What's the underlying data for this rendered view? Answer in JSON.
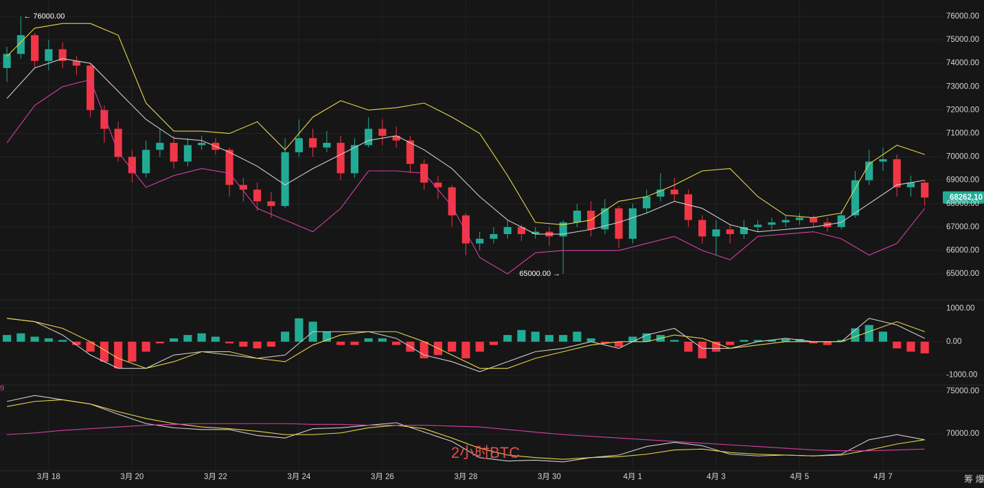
{
  "chart_data": [
    {
      "type": "candlestick",
      "xlim": [
        -0.5,
        67.3
      ],
      "ylim": [
        63944,
        76704
      ],
      "yticks": [
        {
          "value": 65000,
          "label": "65000.00"
        },
        {
          "value": 66000,
          "label": "66000.00"
        },
        {
          "value": 67000,
          "label": "67000.00"
        },
        {
          "value": 68000,
          "label": "68000.00"
        },
        {
          "value": 69000,
          "label": "69000.00"
        },
        {
          "value": 70000,
          "label": "70000.00"
        },
        {
          "value": 71000,
          "label": "71000.00"
        },
        {
          "value": 72000,
          "label": "72000.00"
        },
        {
          "value": 73000,
          "label": "73000.00"
        },
        {
          "value": 74000,
          "label": "74000.00"
        },
        {
          "value": 75000,
          "label": "75000.00"
        },
        {
          "value": 76000,
          "label": "76000.00"
        }
      ],
      "candles": {
        "up_color": "#22ab94",
        "down_color": "#f23645",
        "open": [
          73800,
          74400,
          75200,
          74100,
          74600,
          74100,
          73900,
          72000,
          71200,
          70000,
          69300,
          70300,
          70600,
          69800,
          70500,
          70600,
          70300,
          68800,
          68600,
          68100,
          67900,
          70200,
          70800,
          70400,
          70600,
          69300,
          70500,
          71200,
          70900,
          70700,
          69700,
          68900,
          68700,
          67500,
          66300,
          66500,
          66700,
          67000,
          66700,
          66800,
          66600,
          67200,
          67700,
          66900,
          67800,
          66500,
          67800,
          68300,
          68600,
          68400,
          67300,
          66600,
          66900,
          66700,
          67000,
          67100,
          67200,
          67300,
          67400,
          67200,
          67000,
          67500,
          69000,
          69800,
          69900,
          68700,
          68900
        ],
        "high": [
          74700,
          76000,
          75300,
          75000,
          74900,
          74300,
          74000,
          72200,
          71500,
          70300,
          70700,
          71200,
          70900,
          70800,
          70900,
          70800,
          70400,
          69100,
          68900,
          68500,
          70800,
          71600,
          71200,
          71100,
          70900,
          70800,
          71700,
          71600,
          71300,
          70900,
          69900,
          69200,
          68800,
          67600,
          66800,
          67000,
          67300,
          67100,
          67000,
          67000,
          67300,
          68000,
          68100,
          68200,
          67900,
          68000,
          68600,
          69300,
          69100,
          68600,
          67500,
          67300,
          67100,
          67300,
          67300,
          67400,
          67500,
          67600,
          67500,
          67400,
          67700,
          69400,
          70300,
          70400,
          70100,
          69200,
          69000
        ],
        "low": [
          73200,
          74200,
          73800,
          73700,
          73800,
          73500,
          71700,
          70600,
          69800,
          68900,
          69100,
          70000,
          69500,
          69600,
          70300,
          70100,
          68300,
          68100,
          67700,
          67400,
          67800,
          70000,
          70000,
          70200,
          69000,
          69100,
          70400,
          70500,
          70400,
          69300,
          68600,
          68200,
          67000,
          65800,
          66000,
          66300,
          66500,
          66400,
          66500,
          66200,
          65000,
          67000,
          66600,
          66700,
          66100,
          66300,
          67600,
          68100,
          68100,
          67000,
          66300,
          65800,
          66300,
          66500,
          66800,
          66900,
          67000,
          67100,
          67000,
          66800,
          66900,
          67400,
          68800,
          69400,
          68300,
          68300,
          67900
        ],
        "close": [
          74400,
          75200,
          74100,
          74600,
          74100,
          73900,
          72000,
          71200,
          70000,
          69300,
          70300,
          70600,
          69800,
          70500,
          70600,
          70300,
          68800,
          68600,
          68100,
          67900,
          70200,
          70800,
          70400,
          70600,
          69300,
          70500,
          71200,
          70900,
          70700,
          69700,
          68900,
          68700,
          67500,
          66300,
          66500,
          66700,
          67000,
          66700,
          66800,
          66600,
          67200,
          67700,
          66900,
          67800,
          66500,
          67800,
          68300,
          68600,
          68400,
          67300,
          66600,
          66900,
          66700,
          67000,
          67100,
          67200,
          67300,
          67400,
          67200,
          67000,
          67500,
          69000,
          69800,
          69900,
          68700,
          68900,
          68262.1
        ]
      },
      "series": [
        {
          "color": "#e8d84a",
          "x": [
            0,
            2,
            4,
            6,
            8,
            10,
            12,
            14,
            16,
            18,
            20,
            22,
            24,
            26,
            28,
            30,
            32,
            34,
            36,
            38,
            40,
            42,
            44,
            46,
            48,
            50,
            52,
            54,
            56,
            58,
            60,
            62,
            64,
            66
          ],
          "values": [
            74300,
            75500,
            75700,
            75700,
            75200,
            72300,
            71100,
            71100,
            71000,
            71500,
            70300,
            71700,
            72400,
            72000,
            72100,
            72300,
            71700,
            71000,
            69200,
            67200,
            67100,
            67300,
            68100,
            68300,
            68800,
            69400,
            69500,
            68300,
            67500,
            67400,
            67600,
            69700,
            70500,
            70100
          ]
        },
        {
          "color": "#d0d0d0",
          "x": [
            0,
            2,
            4,
            6,
            8,
            10,
            12,
            14,
            16,
            18,
            20,
            22,
            24,
            26,
            28,
            30,
            32,
            34,
            36,
            38,
            40,
            42,
            44,
            46,
            48,
            50,
            52,
            54,
            56,
            58,
            60,
            62,
            64,
            66
          ],
          "values": [
            72500,
            73800,
            74200,
            74000,
            72800,
            71600,
            70800,
            70700,
            70200,
            69600,
            68800,
            69500,
            70100,
            70700,
            70900,
            70300,
            69500,
            68300,
            67300,
            66700,
            66700,
            66900,
            67200,
            67600,
            68100,
            67800,
            67100,
            66800,
            66900,
            67000,
            67200,
            68000,
            68800,
            69000
          ]
        },
        {
          "color": "#d93fa7",
          "x": [
            0,
            2,
            4,
            6,
            8,
            10,
            12,
            14,
            16,
            18,
            20,
            22,
            24,
            26,
            28,
            30,
            32,
            34,
            36,
            38,
            40,
            42,
            44,
            46,
            48,
            50,
            52,
            54,
            56,
            58,
            60,
            62,
            64,
            66
          ],
          "values": [
            70600,
            72200,
            73000,
            73300,
            70200,
            68700,
            69200,
            69500,
            69300,
            67800,
            67300,
            66800,
            67800,
            69400,
            69400,
            69300,
            67900,
            65700,
            65000,
            65900,
            66000,
            66000,
            66000,
            66300,
            66600,
            66000,
            65600,
            66600,
            66700,
            66800,
            66500,
            65800,
            66300,
            67800
          ]
        }
      ],
      "annotations": [
        {
          "text": "← 76000.00",
          "x": 1,
          "y": 76000
        },
        {
          "text": "65000.00 →",
          "x": 40,
          "y": 65000
        }
      ],
      "last_price": {
        "value": 68262.1,
        "label": "68262.10",
        "color": "#22ab94"
      }
    },
    {
      "type": "macd",
      "xlim": [
        -0.5,
        67.3
      ],
      "ylim": [
        -1280,
        1190
      ],
      "yticks": [
        {
          "value": -1000,
          "label": "-1000.00"
        },
        {
          "value": 0,
          "label": "0.00"
        },
        {
          "value": 1000,
          "label": "1000.00"
        }
      ],
      "histogram": {
        "up_color": "#22ab94",
        "down_color": "#f23645",
        "values": [
          200,
          250,
          150,
          100,
          50,
          -100,
          -300,
          -600,
          -800,
          -600,
          -300,
          -50,
          100,
          200,
          250,
          150,
          -50,
          -150,
          -200,
          -150,
          300,
          700,
          600,
          300,
          -100,
          -100,
          100,
          100,
          -100,
          -300,
          -500,
          -400,
          -300,
          -500,
          -300,
          -100,
          200,
          350,
          300,
          200,
          200,
          300,
          100,
          -50,
          -150,
          150,
          250,
          200,
          50,
          -300,
          -500,
          -300,
          -100,
          50,
          50,
          50,
          80,
          80,
          -50,
          -100,
          50,
          400,
          500,
          300,
          -200,
          -300,
          -350
        ]
      },
      "series": [
        {
          "color": "#d0d0d0",
          "x": [
            0,
            2,
            4,
            6,
            8,
            10,
            12,
            14,
            16,
            18,
            20,
            22,
            24,
            26,
            28,
            30,
            32,
            34,
            36,
            38,
            40,
            42,
            44,
            46,
            48,
            50,
            52,
            54,
            56,
            58,
            60,
            62,
            64,
            66
          ],
          "values": [
            700,
            600,
            200,
            -400,
            -800,
            -800,
            -400,
            -300,
            -400,
            -500,
            -400,
            300,
            300,
            300,
            100,
            -400,
            -600,
            -900,
            -600,
            -300,
            -200,
            0,
            -200,
            200,
            400,
            -200,
            -200,
            0,
            100,
            0,
            0,
            700,
            500,
            100
          ]
        },
        {
          "color": "#e8d84a",
          "x": [
            0,
            2,
            4,
            6,
            8,
            10,
            12,
            14,
            16,
            18,
            20,
            22,
            24,
            26,
            28,
            30,
            32,
            34,
            36,
            38,
            40,
            42,
            44,
            46,
            48,
            50,
            52,
            54,
            56,
            58,
            60,
            62,
            64,
            66
          ],
          "values": [
            700,
            600,
            400,
            0,
            -500,
            -800,
            -600,
            -300,
            -300,
            -500,
            -600,
            -100,
            200,
            300,
            300,
            0,
            -400,
            -800,
            -800,
            -500,
            -300,
            -100,
            0,
            0,
            200,
            100,
            -200,
            -100,
            0,
            0,
            0,
            300,
            600,
            300
          ]
        }
      ]
    },
    {
      "type": "line",
      "label": "9",
      "label_color": "#d93fa7",
      "watermark": "2小时BTC",
      "corner_text": "筹 爆",
      "xlim": [
        -0.5,
        67.3
      ],
      "ylim": [
        65726,
        75806
      ],
      "yticks": [
        {
          "value": 70000,
          "label": "70000.00"
        },
        {
          "value": 75000,
          "label": "75000.00"
        }
      ],
      "xticks": [
        {
          "value": 3,
          "label": "3月 18"
        },
        {
          "value": 9,
          "label": "3月 20"
        },
        {
          "value": 15,
          "label": "3月 22"
        },
        {
          "value": 21,
          "label": "3月 24"
        },
        {
          "value": 27,
          "label": "3月 26"
        },
        {
          "value": 33,
          "label": "3月 28"
        },
        {
          "value": 39,
          "label": "3月 30"
        },
        {
          "value": 45,
          "label": "4月 1"
        },
        {
          "value": 51,
          "label": "4月 3"
        },
        {
          "value": 57,
          "label": "4月 5"
        },
        {
          "value": 63,
          "label": "4月 7"
        }
      ],
      "series": [
        {
          "color": "#d0d0d0",
          "x": [
            0,
            2,
            4,
            6,
            8,
            10,
            12,
            14,
            16,
            18,
            20,
            22,
            24,
            26,
            28,
            30,
            32,
            34,
            36,
            38,
            40,
            42,
            44,
            46,
            48,
            50,
            52,
            54,
            56,
            58,
            60,
            62,
            64,
            66
          ],
          "values": [
            73800,
            74500,
            74000,
            73500,
            72300,
            71200,
            70700,
            70500,
            70500,
            69800,
            69500,
            70600,
            70700,
            71000,
            71300,
            70200,
            69100,
            67200,
            66800,
            66900,
            66700,
            67200,
            67500,
            68500,
            69000,
            68600,
            67600,
            67400,
            67500,
            67400,
            67600,
            69300,
            69900,
            69300
          ]
        },
        {
          "color": "#e8d84a",
          "x": [
            0,
            2,
            4,
            6,
            8,
            10,
            12,
            14,
            16,
            18,
            20,
            22,
            24,
            26,
            28,
            30,
            32,
            34,
            36,
            38,
            40,
            42,
            44,
            46,
            48,
            50,
            52,
            54,
            56,
            58,
            60,
            62,
            64,
            66
          ],
          "values": [
            73200,
            73800,
            74000,
            73500,
            72600,
            71800,
            71200,
            70800,
            70600,
            70300,
            69900,
            69900,
            70100,
            70700,
            71000,
            70600,
            69500,
            68300,
            67500,
            67200,
            67000,
            67200,
            67300,
            67600,
            68100,
            68200,
            67800,
            67600,
            67500,
            67400,
            67500,
            68100,
            68800,
            69300
          ]
        },
        {
          "color": "#d93fa7",
          "x": [
            0,
            2,
            4,
            6,
            8,
            10,
            12,
            14,
            16,
            18,
            20,
            22,
            24,
            26,
            28,
            30,
            32,
            34,
            36,
            38,
            40,
            42,
            44,
            46,
            48,
            50,
            52,
            54,
            56,
            58,
            60,
            62,
            64,
            66
          ],
          "values": [
            69900,
            70100,
            70400,
            70600,
            70800,
            71000,
            71100,
            71200,
            71200,
            71200,
            71200,
            71100,
            71100,
            71000,
            71000,
            71000,
            70900,
            70800,
            70500,
            70200,
            69900,
            69700,
            69500,
            69300,
            69100,
            68900,
            68700,
            68500,
            68300,
            68100,
            68000,
            68000,
            68100,
            68200
          ]
        }
      ]
    }
  ]
}
